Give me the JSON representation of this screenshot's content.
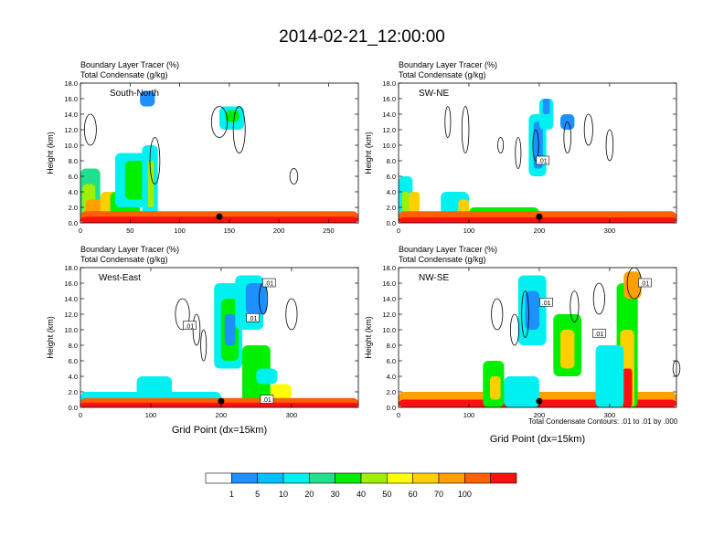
{
  "figure": {
    "title": "2014-02-21_12:00:00",
    "contour_note": "Total Condensate Contours: .01 to .01 by .000",
    "colorbar": {
      "labels": [
        "1",
        "5",
        "10",
        "20",
        "30",
        "40",
        "50",
        "60",
        "70",
        "100"
      ],
      "colors": [
        "#ffffff",
        "#1e90ff",
        "#00c0ff",
        "#00f0f0",
        "#20e090",
        "#00ee00",
        "#a0ee00",
        "#ffff00",
        "#ffd000",
        "#ffa000",
        "#ff6000",
        "#ff1010"
      ]
    }
  },
  "chart_data": [
    {
      "type": "heatmap",
      "name": "South-North",
      "title_lines": [
        "Boundary Layer Tracer   (%)",
        "Total Condensate   (g/kg)"
      ],
      "ylabel": "Height (km)",
      "xlabel": "",
      "xlim": [
        0,
        280
      ],
      "ylim": [
        0,
        18
      ],
      "xticks": [
        "0",
        "50",
        "100",
        "150",
        "200",
        "250"
      ],
      "yticks": [
        "0.0",
        "2.0",
        "4.0",
        "6.0",
        "8.0",
        "10.0",
        "12.0",
        "14.0",
        "16.0",
        "18.0"
      ],
      "marker_x": 140,
      "contour_labels": []
    },
    {
      "type": "heatmap",
      "name": "SW-NE",
      "title_lines": [
        "Boundary Layer Tracer   (%)",
        "Total Condensate   (g/kg)"
      ],
      "ylabel": "Height (km)",
      "xlabel": "",
      "xlim": [
        0,
        395
      ],
      "ylim": [
        0,
        18
      ],
      "xticks": [
        "0",
        "100",
        "200",
        "300"
      ],
      "yticks": [
        "0.0",
        "2.0",
        "4.0",
        "6.0",
        "8.0",
        "10.0",
        "12.0",
        "14.0",
        "16.0",
        "18.0"
      ],
      "marker_x": 200,
      "contour_labels": [
        ".01"
      ]
    },
    {
      "type": "heatmap",
      "name": "West-East",
      "title_lines": [
        "Boundary Layer Tracer   (%)",
        "Total Condensate   (g/kg)"
      ],
      "ylabel": "Height (km)",
      "xlabel": "Grid Point (dx=15km)",
      "xlim": [
        0,
        395
      ],
      "ylim": [
        0,
        18
      ],
      "xticks": [
        "0",
        "100",
        "200",
        "300"
      ],
      "yticks": [
        "0.0",
        "2.0",
        "4.0",
        "6.0",
        "8.0",
        "10.0",
        "12.0",
        "14.0",
        "16.0",
        "18.0"
      ],
      "marker_x": 200,
      "contour_labels": [
        ".01",
        ".01",
        ".01",
        ".01"
      ]
    },
    {
      "type": "heatmap",
      "name": "NW-SE",
      "title_lines": [
        "Boundary Layer Tracer   (%)",
        "Total Condensate   (g/kg)"
      ],
      "ylabel": "Height (km)",
      "xlabel": "Grid Point (dx=15km)",
      "xlim": [
        0,
        395
      ],
      "ylim": [
        0,
        18
      ],
      "xticks": [
        "0",
        "100",
        "200",
        "300"
      ],
      "yticks": [
        "0.0",
        "2.0",
        "4.0",
        "6.0",
        "8.0",
        "10.0",
        "12.0",
        "14.0",
        "16.0",
        "18.0"
      ],
      "marker_x": 200,
      "contour_labels": [
        ".01",
        ".01",
        ".01"
      ]
    }
  ]
}
